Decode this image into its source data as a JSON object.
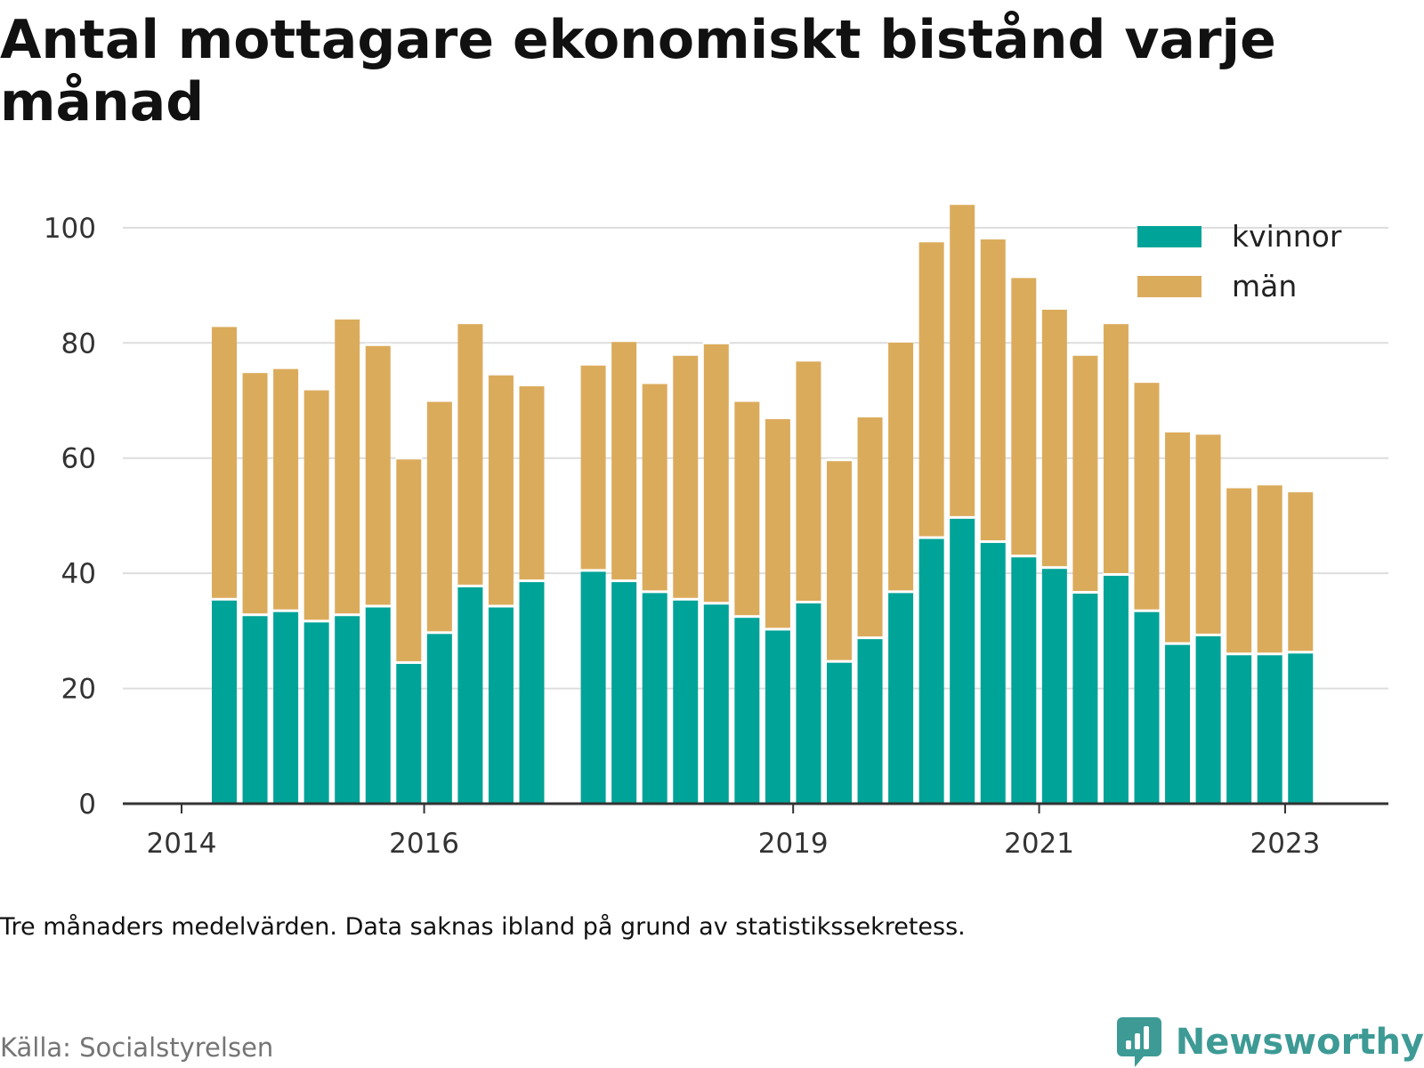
{
  "title": "Antal mottagare ekonomiskt bistånd varje månad",
  "note": "Tre månaders medelvärden. Data saknas ibland på grund av statistikssekretess.",
  "source": "Källa: Socialstyrelsen",
  "brand": {
    "name": "Newsworthy",
    "icon": "newsworthy-logo-icon",
    "color": "#3d9a95"
  },
  "chart_data": {
    "type": "bar",
    "stacked": true,
    "x_tick_labels": [
      "2014",
      "2016",
      "2019",
      "2021",
      "2023"
    ],
    "categories": [
      "Q2-2014",
      "Q3-2014",
      "Q4-2014",
      "Q1-2015",
      "Q2-2015",
      "Q3-2015",
      "Q4-2015",
      "Q1-2016",
      "Q2-2016",
      "Q3-2016",
      "Q4-2016",
      "Q1-2017",
      "Q2-2017",
      "Q3-2017",
      "Q4-2017",
      "Q1-2018",
      "Q2-2018",
      "Q3-2018",
      "Q4-2018",
      "Q1-2019",
      "Q2-2019",
      "Q3-2019",
      "Q4-2019",
      "Q1-2020",
      "Q2-2020",
      "Q3-2020",
      "Q4-2020",
      "Q1-2021",
      "Q2-2021",
      "Q3-2021",
      "Q4-2021",
      "Q1-2022",
      "Q2-2022",
      "Q3-2022",
      "Q4-2022",
      "Q1-2023",
      "Q2-2023",
      "Q3-2023",
      "Q4-2023",
      "Q1-2024"
    ],
    "series": [
      {
        "name": "kvinnor",
        "color": "#00a398",
        "values": [
          35.5,
          32.8,
          33.5,
          31.7,
          32.8,
          34.3,
          24.5,
          29.7,
          37.8,
          34.3,
          38.7,
          null,
          40.5,
          38.7,
          36.8,
          35.5,
          34.8,
          32.5,
          30.3,
          35.0,
          24.7,
          28.8,
          36.8,
          46.2,
          49.7,
          45.5,
          43.0,
          41.0,
          36.7,
          39.8,
          33.5,
          27.8,
          29.3,
          26.0,
          26.0,
          26.3,
          null,
          null,
          null,
          null
        ]
      },
      {
        "name": "män",
        "color": "#dbab5c",
        "values": [
          47.5,
          42.2,
          42.2,
          40.3,
          51.5,
          45.4,
          35.5,
          40.3,
          45.7,
          40.3,
          34.0,
          null,
          35.8,
          41.7,
          36.3,
          42.5,
          45.2,
          37.5,
          36.7,
          42.0,
          35.0,
          38.5,
          43.5,
          51.5,
          54.5,
          52.7,
          48.5,
          45.0,
          41.3,
          43.7,
          39.8,
          36.9,
          35.0,
          29.0,
          29.5,
          28.0,
          null,
          null,
          null,
          null
        ]
      }
    ],
    "ylim": [
      0,
      104
    ],
    "y_ticks": [
      0,
      20,
      40,
      60,
      80,
      100
    ],
    "grid": true,
    "legend_position": "top-right"
  }
}
